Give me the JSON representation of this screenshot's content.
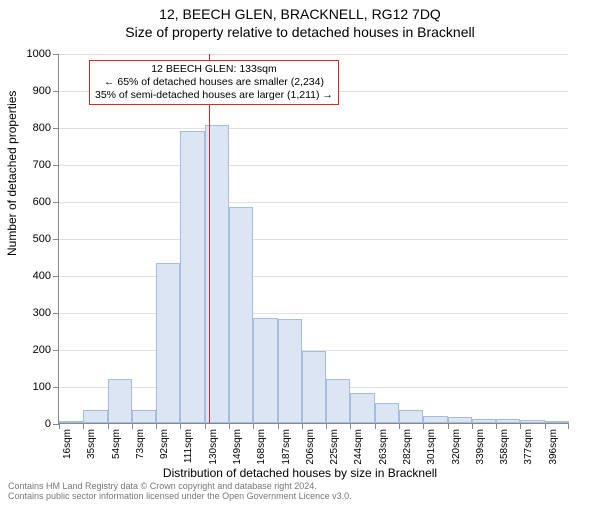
{
  "title_main": "12, BEECH GLEN, BRACKNELL, RG12 7DQ",
  "title_sub": "Size of property relative to detached houses in Bracknell",
  "y_axis_title": "Number of detached properties",
  "x_axis_title": "Distribution of detached houses by size in Bracknell",
  "footer_line1": "Contains HM Land Registry data © Crown copyright and database right 2024.",
  "footer_line2": "Contains public sector information licensed under the Open Government Licence v3.0.",
  "chart": {
    "type": "histogram",
    "ylim": [
      0,
      1000
    ],
    "ytick_step": 100,
    "bar_fill": "#dbe5f4",
    "bar_stroke": "#a8bcdc",
    "grid_color": "#e0e0e0",
    "axis_color": "#888888",
    "background_color": "#ffffff",
    "bar_width_ratio": 1.0,
    "x_labels": [
      "16sqm",
      "35sqm",
      "54sqm",
      "73sqm",
      "92sqm",
      "111sqm",
      "130sqm",
      "149sqm",
      "168sqm",
      "187sqm",
      "206sqm",
      "225sqm",
      "244sqm",
      "263sqm",
      "282sqm",
      "301sqm",
      "320sqm",
      "339sqm",
      "358sqm",
      "377sqm",
      "396sqm"
    ],
    "values": [
      0,
      35,
      120,
      35,
      433,
      790,
      805,
      585,
      285,
      280,
      195,
      120,
      80,
      55,
      35,
      20,
      15,
      12,
      10,
      8,
      5
    ],
    "title_fontsize": 14,
    "label_fontsize": 12,
    "tick_fontsize": 11,
    "xtick_fontsize": 10
  },
  "marker": {
    "property_sqm": 133,
    "line_color": "#d62728",
    "box_border_color": "#d62728",
    "line1": "12 BEECH GLEN: 133sqm",
    "line2": "← 65% of detached houses are smaller (2,234)",
    "line3": "35% of semi-detached houses are larger (1,211) →"
  }
}
